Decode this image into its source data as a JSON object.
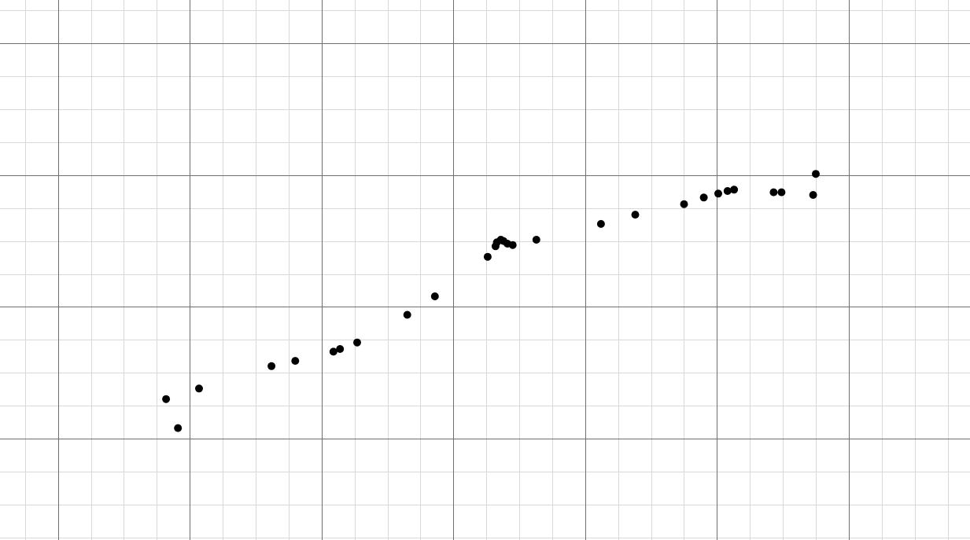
{
  "chart_data": {
    "type": "scatter",
    "title": "",
    "xlabel": "",
    "ylabel": "",
    "grid": true,
    "xlim": [
      -0.44,
      6.92
    ],
    "ylim": [
      -0.77,
      3.33
    ],
    "major_step": 1,
    "minor_step": 0.25,
    "series": [
      {
        "color": "#000000",
        "points": [
          [
            0.82,
            0.3
          ],
          [
            0.91,
            0.08
          ],
          [
            1.07,
            0.38
          ],
          [
            1.62,
            0.55
          ],
          [
            1.8,
            0.59
          ],
          [
            2.09,
            0.66
          ],
          [
            2.14,
            0.68
          ],
          [
            2.27,
            0.73
          ],
          [
            2.65,
            0.94
          ],
          [
            2.86,
            1.08
          ],
          [
            3.26,
            1.38
          ],
          [
            3.32,
            1.46
          ],
          [
            3.33,
            1.49
          ],
          [
            3.36,
            1.51
          ],
          [
            3.38,
            1.5
          ],
          [
            3.41,
            1.48
          ],
          [
            3.45,
            1.47
          ],
          [
            3.63,
            1.51
          ],
          [
            4.12,
            1.63
          ],
          [
            4.38,
            1.7
          ],
          [
            4.75,
            1.78
          ],
          [
            4.9,
            1.83
          ],
          [
            5.01,
            1.86
          ],
          [
            5.08,
            1.88
          ],
          [
            5.13,
            1.89
          ],
          [
            5.43,
            1.87
          ],
          [
            5.49,
            1.87
          ],
          [
            5.73,
            1.85
          ],
          [
            5.75,
            2.01
          ]
        ]
      }
    ]
  }
}
